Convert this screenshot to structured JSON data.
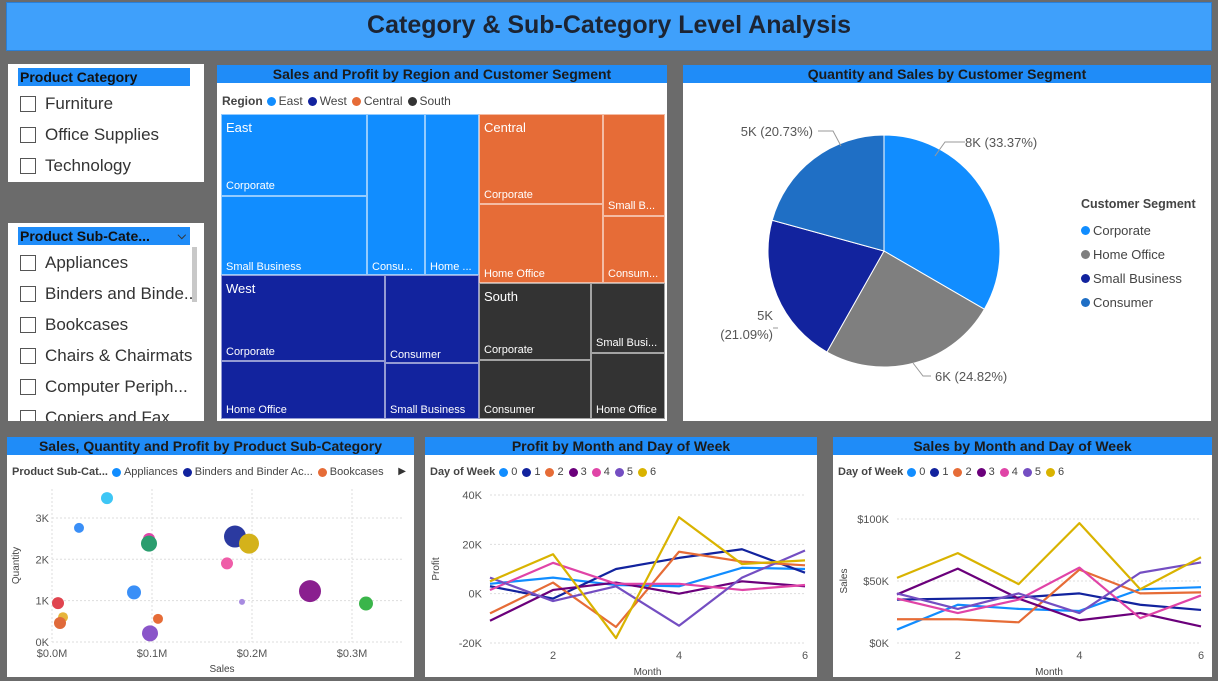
{
  "title": "Category & Sub-Category Level Analysis",
  "colors": {
    "blue": "#118dff",
    "navy": "#12239e",
    "orange": "#e66c37",
    "dark": "#333333",
    "gray": "#7f7f7f",
    "steel": "#1f6fc5"
  },
  "slicer_category": {
    "header": "Product Category",
    "items": [
      "Furniture",
      "Office Supplies",
      "Technology"
    ]
  },
  "slicer_subcategory": {
    "header": "Product Sub-Cate...",
    "items": [
      "Appliances",
      "Binders and Binde...",
      "Bookcases",
      "Chairs & Chairmats",
      "Computer Periph...",
      "Copiers and Fax"
    ]
  },
  "treemap": {
    "title": "Sales and Profit by Region and Customer Segment",
    "legend_title": "Region",
    "legend": [
      {
        "label": "East",
        "color": "#118dff"
      },
      {
        "label": "West",
        "color": "#12239e"
      },
      {
        "label": "Central",
        "color": "#e66c37"
      },
      {
        "label": "South",
        "color": "#333333"
      }
    ],
    "regions": {
      "east": "East",
      "central": "Central",
      "west": "West",
      "south": "South"
    },
    "tiles": {
      "east_corporate": "Corporate",
      "east_small": "Small Business",
      "east_consu": "Consu...",
      "east_home": "Home ...",
      "central_corporate": "Corporate",
      "central_home": "Home Office",
      "central_small": "Small B...",
      "central_consum": "Consum...",
      "west_corporate": "Corporate",
      "west_home": "Home Office",
      "west_consumer": "Consumer",
      "west_small": "Small Business",
      "south_corporate": "Corporate",
      "south_consumer": "Consumer",
      "south_small": "Small Busi...",
      "south_home": "Home Office"
    }
  },
  "pie": {
    "title": "Quantity and Sales by Customer Segment",
    "legend_title": "Customer Segment",
    "slices": [
      {
        "name": "Corporate",
        "percent": 33.37,
        "label": "8K (33.37%)",
        "color": "#118dff"
      },
      {
        "name": "Home Office",
        "percent": 24.82,
        "label": "6K (24.82%)",
        "color": "#7f7f7f"
      },
      {
        "name": "Small Business",
        "percent": 21.09,
        "label": "5K",
        "label2": "(21.09%)",
        "color": "#12239e"
      },
      {
        "name": "Consumer",
        "percent": 20.73,
        "label": "5K (20.73%)",
        "color": "#1f6fc5"
      }
    ]
  },
  "scatter": {
    "title": "Sales, Quantity and Profit by Product Sub-Category",
    "legend_title": "Product Sub-Cat...",
    "legend": [
      {
        "label": "Appliances",
        "color": "#118dff"
      },
      {
        "label": "Binders and Binder Ac...",
        "color": "#12239e"
      },
      {
        "label": "Bookcases",
        "color": "#e66c37"
      }
    ],
    "xlabel": "Sales",
    "ylabel": "Quantity",
    "xticks": [
      "$0.0M",
      "$0.1M",
      "$0.2M",
      "$0.3M"
    ],
    "yticks": [
      "0K",
      "1K",
      "2K",
      "3K"
    ],
    "points": [
      {
        "x": 0.055,
        "y": 3480,
        "r": 6,
        "c": "#3ec6f5"
      },
      {
        "x": 0.027,
        "y": 2760,
        "r": 5,
        "c": "#3a8ff7"
      },
      {
        "x": 0.097,
        "y": 2490,
        "r": 6,
        "c": "#e044a7"
      },
      {
        "x": 0.097,
        "y": 2380,
        "r": 8,
        "c": "#2a9d6e"
      },
      {
        "x": 0.183,
        "y": 2550,
        "r": 11,
        "c": "#2b3aa0"
      },
      {
        "x": 0.197,
        "y": 2380,
        "r": 10,
        "c": "#d4b21a"
      },
      {
        "x": 0.175,
        "y": 1900,
        "r": 6,
        "c": "#ef5da8"
      },
      {
        "x": 0.082,
        "y": 1200,
        "r": 7,
        "c": "#3a8ff7"
      },
      {
        "x": 0.258,
        "y": 1230,
        "r": 11,
        "c": "#8a1f8f"
      },
      {
        "x": 0.314,
        "y": 930,
        "r": 7,
        "c": "#3ab54a"
      },
      {
        "x": 0.006,
        "y": 940,
        "r": 6,
        "c": "#e0444f"
      },
      {
        "x": 0.011,
        "y": 600,
        "r": 5,
        "c": "#e6b43a"
      },
      {
        "x": 0.008,
        "y": 460,
        "r": 6,
        "c": "#e06a3a"
      },
      {
        "x": 0.106,
        "y": 560,
        "r": 5,
        "c": "#e66c37"
      },
      {
        "x": 0.098,
        "y": 210,
        "r": 8,
        "c": "#8a55c9"
      },
      {
        "x": 0.19,
        "y": 970,
        "r": 3,
        "c": "#a78ae0"
      }
    ]
  },
  "chart_data": [
    {
      "type": "line",
      "title": "Profit by Month and Day of Week",
      "legend_title": "Day of Week",
      "xlabel": "Month",
      "ylabel": "Profit",
      "x": [
        1,
        2,
        3,
        4,
        5,
        6
      ],
      "xticks": [
        "2",
        "4",
        "6"
      ],
      "yticks": [
        "-20K",
        "0K",
        "20K",
        "40K"
      ],
      "ylim": [
        -20000,
        40000
      ],
      "series": [
        {
          "name": "0",
          "color": "#118dff",
          "values": [
            4000,
            6500,
            3500,
            3000,
            10500,
            10000
          ]
        },
        {
          "name": "1",
          "color": "#12239e",
          "values": [
            3000,
            -2000,
            10000,
            14500,
            18000,
            8500
          ]
        },
        {
          "name": "2",
          "color": "#e66c37",
          "values": [
            -8000,
            4500,
            -13500,
            17000,
            13000,
            11500
          ]
        },
        {
          "name": "3",
          "color": "#6b007b",
          "values": [
            -11000,
            1500,
            4500,
            0,
            5000,
            3000
          ]
        },
        {
          "name": "4",
          "color": "#e044a7",
          "values": [
            1500,
            12500,
            4000,
            4000,
            1500,
            3500
          ]
        },
        {
          "name": "5",
          "color": "#744ec2",
          "values": [
            6500,
            -3000,
            3000,
            -13000,
            6500,
            17500
          ]
        },
        {
          "name": "6",
          "color": "#d9b300",
          "values": [
            5000,
            16000,
            -18000,
            31000,
            12000,
            13500
          ]
        }
      ]
    },
    {
      "type": "line",
      "title": "Sales by Month and Day of Week",
      "legend_title": "Day of Week",
      "xlabel": "Month",
      "ylabel": "Sales",
      "x": [
        1,
        2,
        3,
        4,
        5,
        6
      ],
      "xticks": [
        "2",
        "4",
        "6"
      ],
      "yticks": [
        "$0K",
        "$50K",
        "$100K"
      ],
      "ylim": [
        0,
        120000
      ],
      "series": [
        {
          "name": "0",
          "color": "#118dff",
          "values": [
            13000,
            37000,
            33000,
            31000,
            52000,
            54000
          ]
        },
        {
          "name": "1",
          "color": "#12239e",
          "values": [
            42000,
            43000,
            44000,
            48000,
            37000,
            32000
          ]
        },
        {
          "name": "2",
          "color": "#e66c37",
          "values": [
            23000,
            23000,
            20000,
            71000,
            48000,
            49000
          ]
        },
        {
          "name": "3",
          "color": "#6b007b",
          "values": [
            47000,
            72000,
            43000,
            22000,
            29000,
            16000
          ]
        },
        {
          "name": "4",
          "color": "#e044a7",
          "values": [
            43000,
            29000,
            42000,
            73000,
            24000,
            46000
          ]
        },
        {
          "name": "5",
          "color": "#744ec2",
          "values": [
            48000,
            33000,
            48000,
            29000,
            68000,
            78000
          ]
        },
        {
          "name": "6",
          "color": "#d9b300",
          "values": [
            63000,
            87000,
            57000,
            116000,
            52000,
            83000
          ]
        }
      ]
    }
  ]
}
